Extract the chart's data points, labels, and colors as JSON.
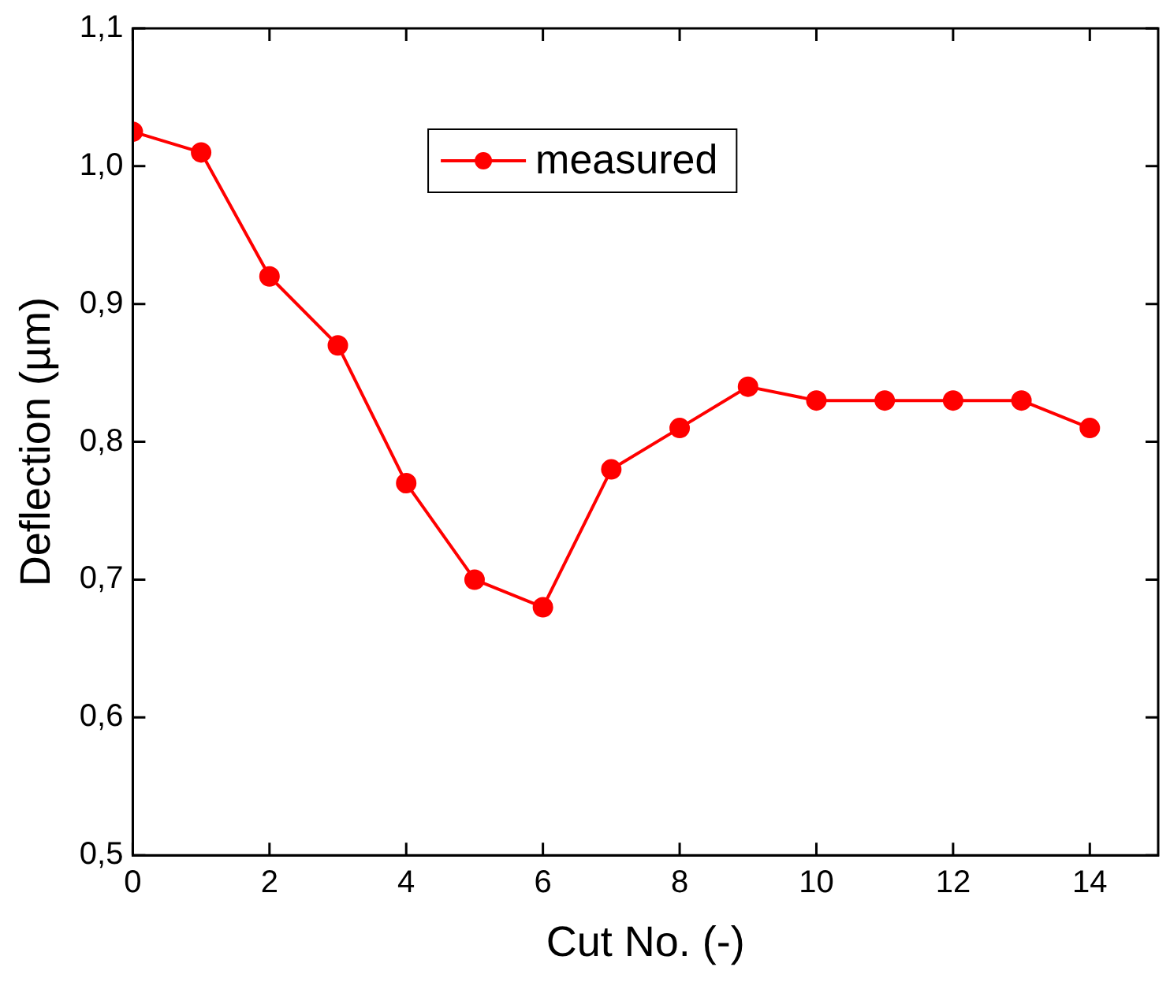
{
  "chart_data": {
    "type": "line",
    "xlabel": "Cut No. (-)",
    "ylabel": "Deflection (µm)",
    "x": [
      0,
      1,
      2,
      3,
      4,
      5,
      6,
      7,
      8,
      9,
      10,
      11,
      12,
      13,
      14
    ],
    "series": [
      {
        "name": "measured",
        "color": "#ff0000",
        "values": [
          1.025,
          1.01,
          0.92,
          0.87,
          0.77,
          0.7,
          0.68,
          0.78,
          0.81,
          0.84,
          0.83,
          0.83,
          0.83,
          0.83,
          0.81
        ]
      }
    ],
    "xlim": [
      0,
      15
    ],
    "xticks": [
      0,
      2,
      4,
      6,
      8,
      10,
      12,
      14
    ],
    "ylim": [
      0.5,
      1.1
    ],
    "yticks": [
      {
        "value": 0.5,
        "label": "0,5"
      },
      {
        "value": 0.6,
        "label": "0,6"
      },
      {
        "value": 0.7,
        "label": "0,7"
      },
      {
        "value": 0.8,
        "label": "0,8"
      },
      {
        "value": 0.9,
        "label": "0,9"
      },
      {
        "value": 1.0,
        "label": "1,0"
      },
      {
        "value": 1.1,
        "label": "1,1"
      }
    ],
    "grid": false,
    "legend": "top",
    "marker": "circle",
    "line_style": "solid"
  }
}
